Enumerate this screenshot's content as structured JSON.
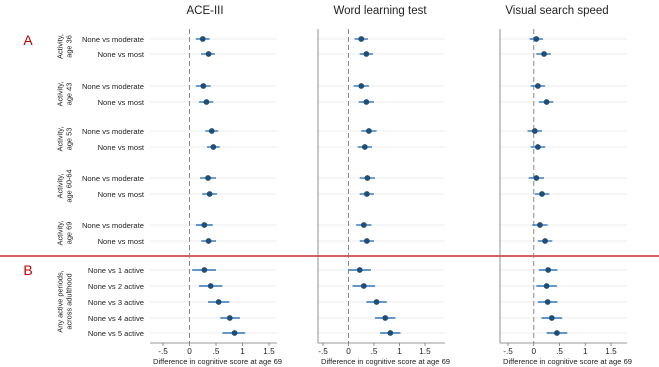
{
  "colors": {
    "point": "#1f4e79",
    "ci": "#2e75b6",
    "reference_line": "#888888",
    "divider": "#c00000",
    "section_letter": "#c00000",
    "grid": "#e6e6e6",
    "axis": "#777777"
  },
  "sections": [
    {
      "letter": "A",
      "groups": [
        {
          "label_lines": [
            "Activity,",
            "age 36"
          ],
          "rows": [
            "None vs moderate",
            "None vs most"
          ]
        },
        {
          "label_lines": [
            "Activity,",
            "age 43"
          ],
          "rows": [
            "None vs moderate",
            "None vs most"
          ]
        },
        {
          "label_lines": [
            "Activity,",
            "age 53"
          ],
          "rows": [
            "None vs moderate",
            "None vs most"
          ]
        },
        {
          "label_lines": [
            "Activity,",
            "age 60-64"
          ],
          "rows": [
            "None vs moderate",
            "None vs most"
          ]
        },
        {
          "label_lines": [
            "Activity,",
            "age 69"
          ],
          "rows": [
            "None vs moderate",
            "None vs most"
          ]
        }
      ]
    },
    {
      "letter": "B",
      "groups": [
        {
          "label_lines": [
            "Any active periods,",
            "across adulthood"
          ],
          "rows": [
            "None vs 1 active",
            "None vs 2 active",
            "None vs 3 active",
            "None vs 4 active",
            "None vs 5 active"
          ]
        }
      ]
    }
  ],
  "chart_data": [
    {
      "type": "scatter",
      "title": "ACE-III",
      "xlabel": "Difference in cognitive score at age 69",
      "xlim": [
        -0.5,
        1.5
      ],
      "xticks": [
        "-.5",
        "0",
        ".5",
        "1",
        "1.5"
      ],
      "xtick_values": [
        -0.5,
        0,
        0.5,
        1,
        1.5
      ],
      "reference_line": 0,
      "grid": true,
      "estimates": [
        0.25,
        0.36,
        0.26,
        0.32,
        0.42,
        0.45,
        0.35,
        0.38,
        0.28,
        0.36,
        0.28,
        0.4,
        0.55,
        0.76,
        0.85
      ],
      "ci_lower": [
        0.12,
        0.22,
        0.12,
        0.18,
        0.3,
        0.33,
        0.2,
        0.24,
        0.12,
        0.22,
        0.05,
        0.18,
        0.35,
        0.58,
        0.62
      ],
      "ci_upper": [
        0.38,
        0.48,
        0.4,
        0.45,
        0.54,
        0.57,
        0.5,
        0.52,
        0.44,
        0.5,
        0.5,
        0.62,
        0.75,
        0.95,
        1.05
      ]
    },
    {
      "type": "scatter",
      "title": "Word learning test",
      "xlabel": "Difference in cognitive score at age 69",
      "xlim": [
        -0.5,
        1.5
      ],
      "xticks": [
        "-.5",
        "0",
        ".5",
        "1",
        "1.5"
      ],
      "xtick_values": [
        -0.5,
        0,
        0.5,
        1,
        1.5
      ],
      "reference_line": 0,
      "grid": true,
      "estimates": [
        0.25,
        0.35,
        0.25,
        0.35,
        0.4,
        0.32,
        0.37,
        0.36,
        0.3,
        0.36,
        0.22,
        0.3,
        0.55,
        0.72,
        0.82
      ],
      "ci_lower": [
        0.12,
        0.22,
        0.1,
        0.2,
        0.25,
        0.18,
        0.22,
        0.22,
        0.15,
        0.22,
        0.0,
        0.08,
        0.35,
        0.52,
        0.62
      ],
      "ci_upper": [
        0.38,
        0.48,
        0.4,
        0.5,
        0.55,
        0.46,
        0.52,
        0.5,
        0.45,
        0.5,
        0.44,
        0.52,
        0.75,
        0.92,
        1.02
      ]
    },
    {
      "type": "scatter",
      "title": "Visual search speed",
      "xlabel": "Difference in cognitive score at age 69",
      "xlim": [
        -0.5,
        1.5
      ],
      "xticks": [
        "-.5",
        "0",
        ".5",
        "1",
        "1.5"
      ],
      "xtick_values": [
        -0.5,
        0,
        0.5,
        1,
        1.5
      ],
      "reference_line": 0,
      "grid": true,
      "estimates": [
        0.05,
        0.2,
        0.08,
        0.25,
        0.02,
        0.08,
        0.05,
        0.16,
        0.12,
        0.22,
        0.28,
        0.25,
        0.27,
        0.35,
        0.45
      ],
      "ci_lower": [
        -0.08,
        0.05,
        -0.06,
        0.1,
        -0.12,
        -0.06,
        -0.1,
        0.02,
        -0.03,
        0.08,
        0.1,
        0.05,
        0.08,
        0.15,
        0.25
      ],
      "ci_upper": [
        0.18,
        0.33,
        0.22,
        0.38,
        0.16,
        0.22,
        0.2,
        0.3,
        0.27,
        0.36,
        0.46,
        0.45,
        0.46,
        0.55,
        0.65
      ]
    }
  ]
}
